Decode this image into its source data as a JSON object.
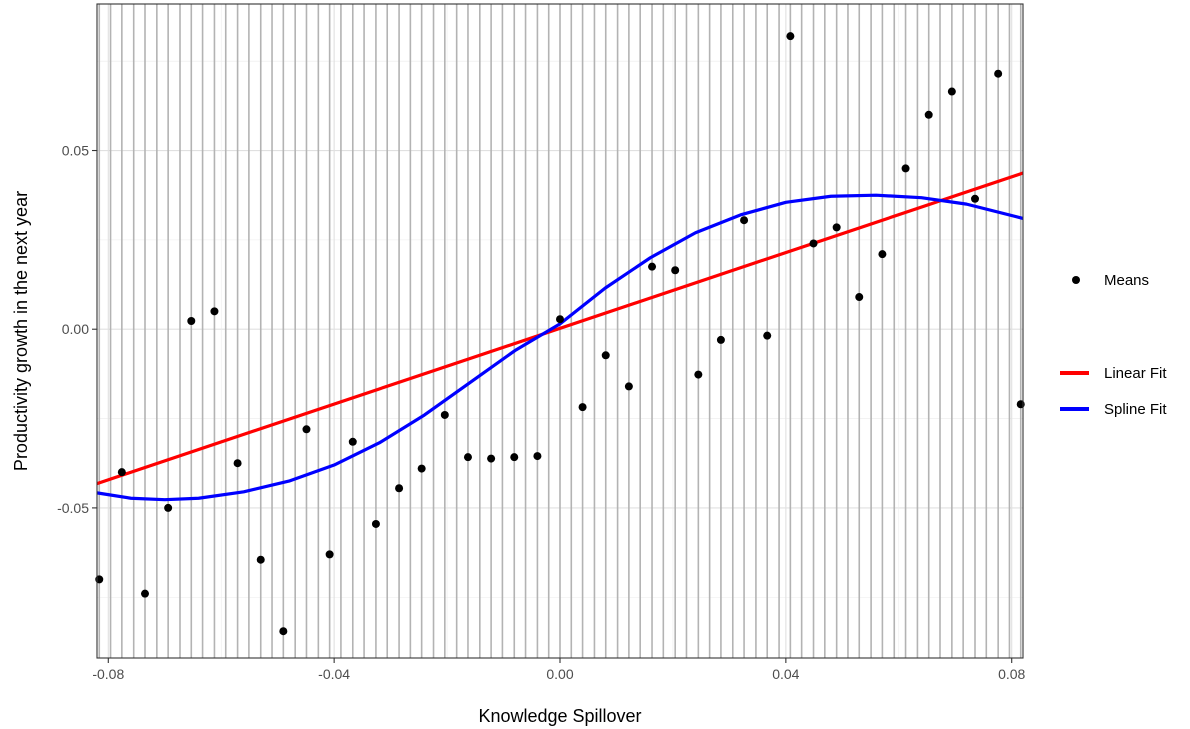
{
  "chart_data": {
    "type": "scatter",
    "xlabel": "Knowledge Spillover",
    "ylabel": "Productivity growth in the next year",
    "xlim": [
      -0.082,
      0.082
    ],
    "ylim": [
      -0.092,
      0.091
    ],
    "x_ticks": [
      -0.08,
      -0.04,
      0.0,
      0.04,
      0.08
    ],
    "x_tick_labels": [
      "-0.08",
      "-0.04",
      "0.00",
      "0.04",
      "0.08"
    ],
    "y_ticks": [
      -0.05,
      0.0,
      0.05
    ],
    "y_tick_labels": [
      "-0.05",
      "0.00",
      "0.05"
    ],
    "grid": true,
    "bin_edges": [
      -0.0816,
      -0.0796,
      -0.0776,
      -0.0755,
      -0.0735,
      -0.0714,
      -0.0694,
      -0.0673,
      -0.0653,
      -0.0633,
      -0.0612,
      -0.0592,
      -0.0571,
      -0.0551,
      -0.053,
      -0.051,
      -0.049,
      -0.0469,
      -0.0449,
      -0.0428,
      -0.0408,
      -0.0388,
      -0.0367,
      -0.0347,
      -0.0326,
      -0.0306,
      -0.0285,
      -0.0265,
      -0.0245,
      -0.0224,
      -0.0204,
      -0.0183,
      -0.0163,
      -0.0142,
      -0.0122,
      -0.0102,
      -0.0081,
      -0.0061,
      -0.004,
      -0.002,
      0.0,
      0.002,
      0.004,
      0.0061,
      0.0081,
      0.0102,
      0.0122,
      0.0142,
      0.0163,
      0.0183,
      0.0204,
      0.0224,
      0.0245,
      0.0265,
      0.0285,
      0.0306,
      0.0326,
      0.0347,
      0.0367,
      0.0388,
      0.0408,
      0.0428,
      0.0449,
      0.0469,
      0.049,
      0.051,
      0.053,
      0.0551,
      0.0571,
      0.0592,
      0.0612,
      0.0633,
      0.0653,
      0.0673,
      0.0694,
      0.0714,
      0.0735,
      0.0755,
      0.0776,
      0.0796,
      0.0816
    ],
    "legend_position": "right",
    "series": [
      {
        "name": "Means",
        "type": "scatter",
        "color": "#000000",
        "points": [
          [
            -0.0816,
            -0.07
          ],
          [
            -0.0776,
            -0.04
          ],
          [
            -0.0735,
            -0.074
          ],
          [
            -0.0694,
            -0.05
          ],
          [
            -0.0653,
            0.0023
          ],
          [
            -0.0612,
            0.005
          ],
          [
            -0.0571,
            -0.0375
          ],
          [
            -0.053,
            -0.0645
          ],
          [
            -0.049,
            -0.0845
          ],
          [
            -0.0449,
            -0.028
          ],
          [
            -0.0408,
            -0.063
          ],
          [
            -0.0367,
            -0.0315
          ],
          [
            -0.0326,
            -0.0545
          ],
          [
            -0.0285,
            -0.0445
          ],
          [
            -0.0245,
            -0.039
          ],
          [
            -0.0204,
            -0.024
          ],
          [
            -0.0163,
            -0.0358
          ],
          [
            -0.0122,
            -0.0362
          ],
          [
            -0.0081,
            -0.0358
          ],
          [
            -0.004,
            -0.0355
          ],
          [
            0.0,
            0.0028
          ],
          [
            0.004,
            -0.0218
          ],
          [
            0.0081,
            -0.0073
          ],
          [
            0.0122,
            -0.016
          ],
          [
            0.0163,
            0.0175
          ],
          [
            0.0204,
            0.0165
          ],
          [
            0.0245,
            -0.0127
          ],
          [
            0.0285,
            -0.003
          ],
          [
            0.0326,
            0.0305
          ],
          [
            0.0367,
            -0.0018
          ],
          [
            0.0408,
            0.082
          ],
          [
            0.0449,
            0.024
          ],
          [
            0.049,
            0.0285
          ],
          [
            0.053,
            0.009
          ],
          [
            0.0571,
            0.021
          ],
          [
            0.0612,
            0.045
          ],
          [
            0.0653,
            0.06
          ],
          [
            0.0694,
            0.0665
          ],
          [
            0.0735,
            0.0365
          ],
          [
            0.0776,
            0.0715
          ],
          [
            0.0816,
            -0.021
          ]
        ]
      },
      {
        "name": "Linear Fit",
        "type": "line",
        "color": "#ff0000",
        "points": [
          [
            -0.082,
            -0.0432
          ],
          [
            0.082,
            0.0437
          ]
        ]
      },
      {
        "name": "Spline Fit",
        "type": "line",
        "color": "#0000ff",
        "points": [
          [
            -0.082,
            -0.0458
          ],
          [
            -0.076,
            -0.0473
          ],
          [
            -0.07,
            -0.0477
          ],
          [
            -0.064,
            -0.0473
          ],
          [
            -0.056,
            -0.0455
          ],
          [
            -0.048,
            -0.0425
          ],
          [
            -0.04,
            -0.038
          ],
          [
            -0.032,
            -0.0318
          ],
          [
            -0.024,
            -0.024
          ],
          [
            -0.016,
            -0.015
          ],
          [
            -0.008,
            -0.006
          ],
          [
            0.0,
            0.0015
          ],
          [
            0.008,
            0.0115
          ],
          [
            0.016,
            0.02
          ],
          [
            0.024,
            0.027
          ],
          [
            0.032,
            0.032
          ],
          [
            0.04,
            0.0355
          ],
          [
            0.048,
            0.0372
          ],
          [
            0.056,
            0.0375
          ],
          [
            0.064,
            0.0368
          ],
          [
            0.072,
            0.035
          ],
          [
            0.082,
            0.031
          ]
        ]
      }
    ]
  }
}
